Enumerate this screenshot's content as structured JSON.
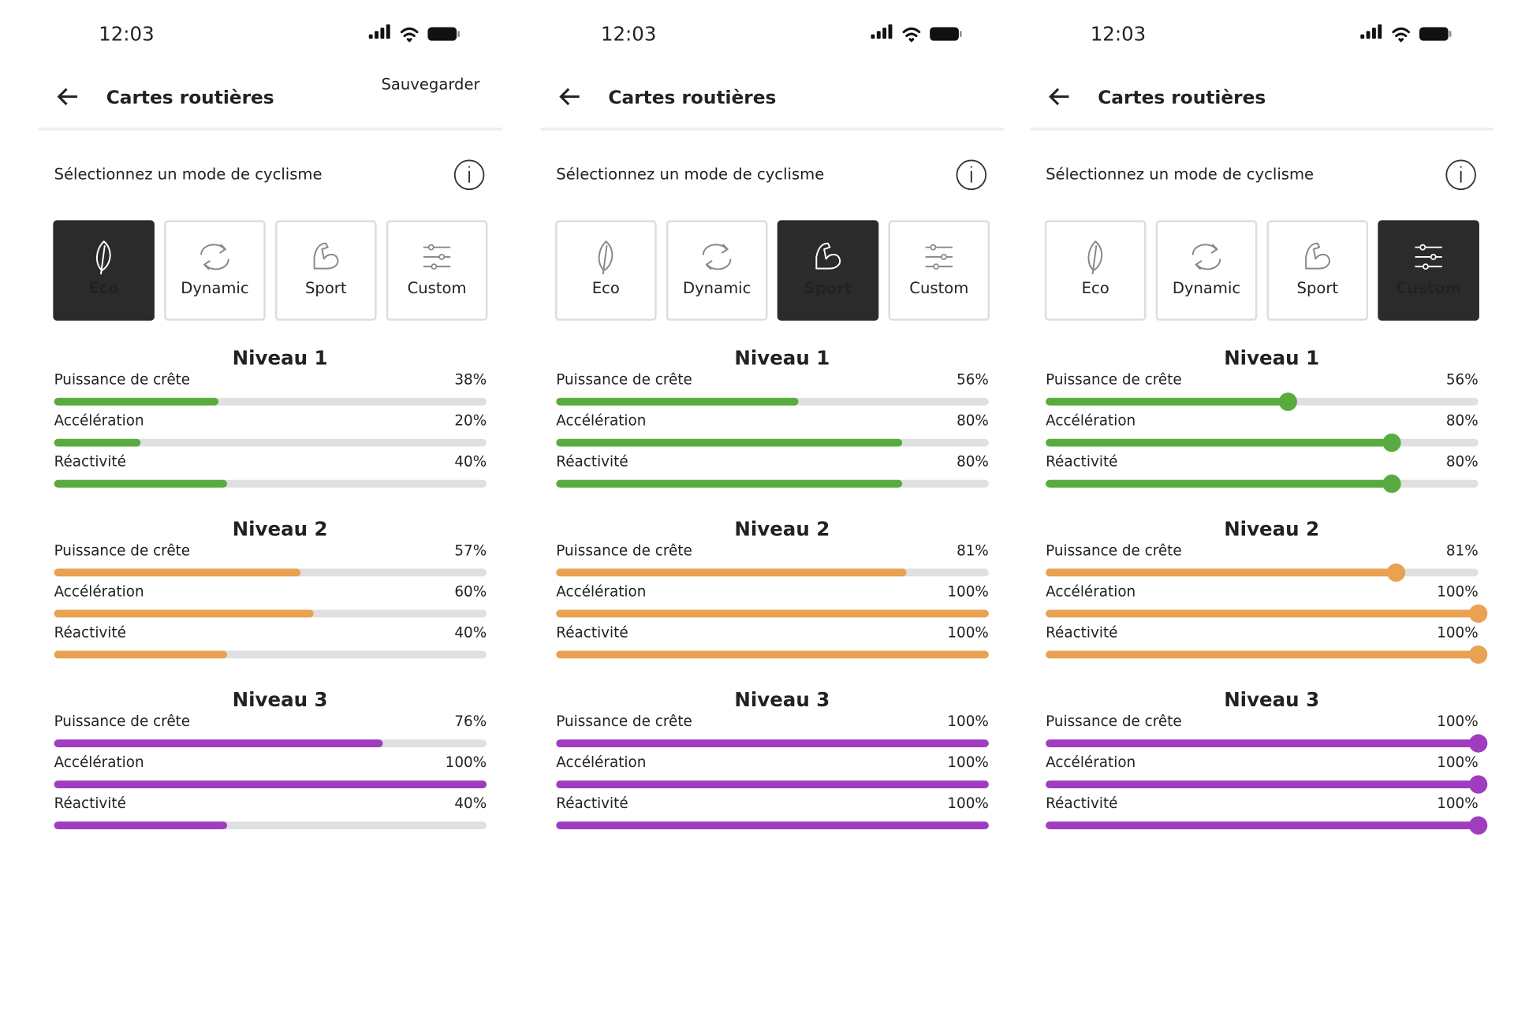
{
  "screens": [
    {
      "status_time": "12:03",
      "title": "Cartes routières",
      "save": "Sauvegarder",
      "prompt": "Sélectionnez un mode de cyclisme",
      "modes": [
        "Eco",
        "Dynamic",
        "Sport",
        "Custom"
      ],
      "selected": 0,
      "sliders": false,
      "levels": [
        {
          "title": "Niveau 1",
          "color": "#5aab3f",
          "rows": [
            {
              "label": "Puissance de crête",
              "value": 38,
              "value_label": "38%"
            },
            {
              "label": "Accélération",
              "value": 20,
              "value_label": "20%"
            },
            {
              "label": "Réactivité",
              "value": 40,
              "value_label": "40%"
            }
          ]
        },
        {
          "title": "Niveau 2",
          "color": "#e8a251",
          "rows": [
            {
              "label": "Puissance de crête",
              "value": 57,
              "value_label": "57%"
            },
            {
              "label": "Accélération",
              "value": 60,
              "value_label": "60%"
            },
            {
              "label": "Réactivité",
              "value": 40,
              "value_label": "40%"
            }
          ]
        },
        {
          "title": "Niveau 3",
          "color": "#a03cbf",
          "rows": [
            {
              "label": "Puissance de crête",
              "value": 76,
              "value_label": "76%"
            },
            {
              "label": "Accélération",
              "value": 100,
              "value_label": "100%"
            },
            {
              "label": "Réactivité",
              "value": 40,
              "value_label": "40%"
            }
          ]
        }
      ]
    },
    {
      "status_time": "12:03",
      "title": "Cartes routières",
      "prompt": "Sélectionnez un mode de cyclisme",
      "modes": [
        "Eco",
        "Dynamic",
        "Sport",
        "Custom"
      ],
      "selected": 2,
      "sliders": false,
      "levels": [
        {
          "title": "Niveau 1",
          "color": "#5aab3f",
          "rows": [
            {
              "label": "Puissance de crête",
              "value": 56,
              "value_label": "56%"
            },
            {
              "label": "Accélération",
              "value": 80,
              "value_label": "80%"
            },
            {
              "label": "Réactivité",
              "value": 80,
              "value_label": "80%"
            }
          ]
        },
        {
          "title": "Niveau 2",
          "color": "#e8a251",
          "rows": [
            {
              "label": "Puissance de crête",
              "value": 81,
              "value_label": "81%"
            },
            {
              "label": "Accélération",
              "value": 100,
              "value_label": "100%"
            },
            {
              "label": "Réactivité",
              "value": 100,
              "value_label": "100%"
            }
          ]
        },
        {
          "title": "Niveau 3",
          "color": "#a03cbf",
          "rows": [
            {
              "label": "Puissance de crête",
              "value": 100,
              "value_label": "100%"
            },
            {
              "label": "Accélération",
              "value": 100,
              "value_label": "100%"
            },
            {
              "label": "Réactivité",
              "value": 100,
              "value_label": "100%"
            }
          ]
        }
      ]
    },
    {
      "status_time": "12:03",
      "title": "Cartes routières",
      "prompt": "Sélectionnez un mode de cyclisme",
      "modes": [
        "Eco",
        "Dynamic",
        "Sport",
        "Custom"
      ],
      "selected": 3,
      "sliders": true,
      "levels": [
        {
          "title": "Niveau 1",
          "color": "#5aab3f",
          "rows": [
            {
              "label": "Puissance de crête",
              "value": 56,
              "value_label": "56%"
            },
            {
              "label": "Accélération",
              "value": 80,
              "value_label": "80%"
            },
            {
              "label": "Réactivité",
              "value": 80,
              "value_label": "80%"
            }
          ]
        },
        {
          "title": "Niveau 2",
          "color": "#e8a251",
          "rows": [
            {
              "label": "Puissance de crête",
              "value": 81,
              "value_label": "81%"
            },
            {
              "label": "Accélération",
              "value": 100,
              "value_label": "100%"
            },
            {
              "label": "Réactivité",
              "value": 100,
              "value_label": "100%"
            }
          ]
        },
        {
          "title": "Niveau 3",
          "color": "#a03cbf",
          "rows": [
            {
              "label": "Puissance de crête",
              "value": 100,
              "value_label": "100%"
            },
            {
              "label": "Accélération",
              "value": 100,
              "value_label": "100%"
            },
            {
              "label": "Réactivité",
              "value": 100,
              "value_label": "100%"
            }
          ]
        }
      ]
    }
  ]
}
